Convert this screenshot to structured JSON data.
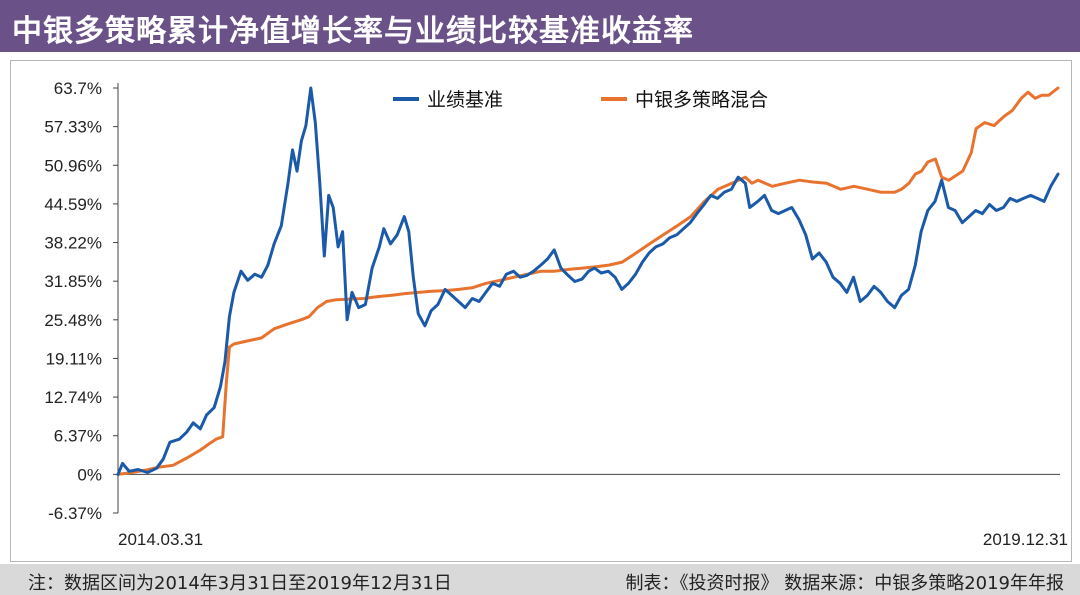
{
  "header": {
    "title": "中银多策略累计净值增长率与业绩比较基准收益率"
  },
  "footer": {
    "note": "注：数据区间为2014年3月31日至2019年12月31日",
    "source": "制表：《投资时报》 数据来源：中银多策略2019年年报"
  },
  "colors": {
    "title_bg": "#6a5288",
    "benchmark": "#1a5aa8",
    "fund": "#e8732e",
    "footer_bg": "#d9d9d9"
  },
  "chart_data": {
    "type": "line",
    "title": "中银多策略累计净值增长率与业绩比较基准收益率",
    "x_start_label": "2014.03.31",
    "x_end_label": "2019.12.31",
    "x_range": [
      "2014-03-31",
      "2019-12-31"
    ],
    "ylim": [
      -6.37,
      63.7
    ],
    "y_ticks": [
      "-6.37%",
      "0%",
      "6.37%",
      "12.74%",
      "19.11%",
      "25.48%",
      "31.85%",
      "38.22%",
      "44.59%",
      "50.96%",
      "57.33%",
      "63.7%"
    ],
    "y_tick_values": [
      -6.37,
      0,
      6.37,
      12.74,
      19.11,
      25.48,
      31.85,
      38.22,
      44.59,
      50.96,
      57.33,
      63.7
    ],
    "grid": false,
    "legend_position": "top",
    "series": [
      {
        "name": "业绩基准",
        "color": "#1a5aa8",
        "points": [
          [
            "2014-03-31",
            0.0
          ],
          [
            "2014-04-10",
            1.8
          ],
          [
            "2014-04-25",
            0.5
          ],
          [
            "2014-05-15",
            0.8
          ],
          [
            "2014-06-05",
            0.3
          ],
          [
            "2014-06-25",
            1.0
          ],
          [
            "2014-07-10",
            2.5
          ],
          [
            "2014-07-25",
            5.3
          ],
          [
            "2014-08-15",
            5.8
          ],
          [
            "2014-09-01",
            7.0
          ],
          [
            "2014-09-15",
            8.5
          ],
          [
            "2014-10-01",
            7.5
          ],
          [
            "2014-10-15",
            9.8
          ],
          [
            "2014-11-01",
            11.0
          ],
          [
            "2014-11-15",
            14.5
          ],
          [
            "2014-11-25",
            18.5
          ],
          [
            "2014-12-05",
            26.0
          ],
          [
            "2014-12-15",
            30.0
          ],
          [
            "2014-12-31",
            33.5
          ],
          [
            "2015-01-15",
            32.0
          ],
          [
            "2015-01-31",
            33.0
          ],
          [
            "2015-02-15",
            32.5
          ],
          [
            "2015-03-01",
            34.5
          ],
          [
            "2015-03-15",
            38.0
          ],
          [
            "2015-03-31",
            41.0
          ],
          [
            "2015-04-15",
            48.0
          ],
          [
            "2015-04-25",
            53.5
          ],
          [
            "2015-05-05",
            50.0
          ],
          [
            "2015-05-15",
            55.0
          ],
          [
            "2015-05-25",
            57.5
          ],
          [
            "2015-06-05",
            63.7
          ],
          [
            "2015-06-15",
            58.0
          ],
          [
            "2015-06-25",
            48.0
          ],
          [
            "2015-07-05",
            36.0
          ],
          [
            "2015-07-15",
            46.0
          ],
          [
            "2015-07-25",
            44.0
          ],
          [
            "2015-08-05",
            37.5
          ],
          [
            "2015-08-15",
            40.0
          ],
          [
            "2015-08-25",
            25.5
          ],
          [
            "2015-09-05",
            30.0
          ],
          [
            "2015-09-20",
            27.5
          ],
          [
            "2015-10-05",
            28.0
          ],
          [
            "2015-10-20",
            34.0
          ],
          [
            "2015-11-05",
            37.5
          ],
          [
            "2015-11-15",
            40.5
          ],
          [
            "2015-11-30",
            38.0
          ],
          [
            "2015-12-15",
            39.5
          ],
          [
            "2015-12-31",
            42.5
          ],
          [
            "2016-01-10",
            40.0
          ],
          [
            "2016-01-20",
            32.5
          ],
          [
            "2016-01-31",
            26.5
          ],
          [
            "2016-02-15",
            24.5
          ],
          [
            "2016-02-29",
            27.0
          ],
          [
            "2016-03-15",
            28.0
          ],
          [
            "2016-03-31",
            30.5
          ],
          [
            "2016-04-15",
            29.5
          ],
          [
            "2016-04-30",
            28.5
          ],
          [
            "2016-05-15",
            27.5
          ],
          [
            "2016-05-31",
            29.0
          ],
          [
            "2016-06-15",
            28.5
          ],
          [
            "2016-06-30",
            30.0
          ],
          [
            "2016-07-15",
            31.5
          ],
          [
            "2016-07-31",
            31.0
          ],
          [
            "2016-08-15",
            33.0
          ],
          [
            "2016-08-31",
            33.5
          ],
          [
            "2016-09-15",
            32.5
          ],
          [
            "2016-09-30",
            32.8
          ],
          [
            "2016-10-15",
            33.5
          ],
          [
            "2016-10-31",
            34.5
          ],
          [
            "2016-11-15",
            35.5
          ],
          [
            "2016-11-30",
            37.0
          ],
          [
            "2016-12-15",
            34.0
          ],
          [
            "2016-12-31",
            32.8
          ],
          [
            "2017-01-15",
            31.8
          ],
          [
            "2017-01-31",
            32.2
          ],
          [
            "2017-02-15",
            33.5
          ],
          [
            "2017-02-28",
            34.0
          ],
          [
            "2017-03-15",
            33.2
          ],
          [
            "2017-03-31",
            33.5
          ],
          [
            "2017-04-15",
            32.5
          ],
          [
            "2017-04-30",
            30.5
          ],
          [
            "2017-05-15",
            31.5
          ],
          [
            "2017-05-31",
            33.0
          ],
          [
            "2017-06-15",
            35.0
          ],
          [
            "2017-06-30",
            36.5
          ],
          [
            "2017-07-15",
            37.5
          ],
          [
            "2017-07-31",
            38.0
          ],
          [
            "2017-08-15",
            39.0
          ],
          [
            "2017-08-31",
            39.5
          ],
          [
            "2017-09-15",
            40.5
          ],
          [
            "2017-09-30",
            41.5
          ],
          [
            "2017-10-15",
            43.0
          ],
          [
            "2017-10-31",
            44.5
          ],
          [
            "2017-11-15",
            46.0
          ],
          [
            "2017-11-30",
            45.5
          ],
          [
            "2017-12-15",
            46.5
          ],
          [
            "2017-12-31",
            47.0
          ],
          [
            "2018-01-15",
            49.0
          ],
          [
            "2018-01-31",
            48.0
          ],
          [
            "2018-02-10",
            44.0
          ],
          [
            "2018-02-28",
            45.0
          ],
          [
            "2018-03-15",
            46.0
          ],
          [
            "2018-03-31",
            43.5
          ],
          [
            "2018-04-15",
            43.0
          ],
          [
            "2018-04-30",
            43.5
          ],
          [
            "2018-05-15",
            44.0
          ],
          [
            "2018-05-31",
            42.0
          ],
          [
            "2018-06-15",
            39.5
          ],
          [
            "2018-06-30",
            35.5
          ],
          [
            "2018-07-15",
            36.5
          ],
          [
            "2018-07-31",
            35.0
          ],
          [
            "2018-08-15",
            32.5
          ],
          [
            "2018-08-31",
            31.5
          ],
          [
            "2018-09-15",
            30.0
          ],
          [
            "2018-09-30",
            32.5
          ],
          [
            "2018-10-15",
            28.5
          ],
          [
            "2018-10-31",
            29.5
          ],
          [
            "2018-11-15",
            31.0
          ],
          [
            "2018-11-30",
            30.0
          ],
          [
            "2018-12-15",
            28.5
          ],
          [
            "2018-12-31",
            27.5
          ],
          [
            "2019-01-15",
            29.5
          ],
          [
            "2019-01-31",
            30.5
          ],
          [
            "2019-02-15",
            34.5
          ],
          [
            "2019-02-28",
            40.0
          ],
          [
            "2019-03-15",
            43.5
          ],
          [
            "2019-03-31",
            45.0
          ],
          [
            "2019-04-15",
            48.5
          ],
          [
            "2019-04-30",
            44.0
          ],
          [
            "2019-05-15",
            43.5
          ],
          [
            "2019-05-31",
            41.5
          ],
          [
            "2019-06-15",
            42.5
          ],
          [
            "2019-06-30",
            43.5
          ],
          [
            "2019-07-15",
            43.0
          ],
          [
            "2019-07-31",
            44.5
          ],
          [
            "2019-08-15",
            43.5
          ],
          [
            "2019-08-31",
            44.0
          ],
          [
            "2019-09-15",
            45.5
          ],
          [
            "2019-09-30",
            45.0
          ],
          [
            "2019-10-15",
            45.5
          ],
          [
            "2019-10-31",
            46.0
          ],
          [
            "2019-11-15",
            45.5
          ],
          [
            "2019-11-30",
            45.0
          ],
          [
            "2019-12-15",
            47.5
          ],
          [
            "2019-12-31",
            49.5
          ]
        ]
      },
      {
        "name": "中银多策略混合",
        "color": "#e8732e",
        "points": [
          [
            "2014-03-31",
            0.0
          ],
          [
            "2014-05-01",
            0.3
          ],
          [
            "2014-06-01",
            0.7
          ],
          [
            "2014-07-01",
            1.2
          ],
          [
            "2014-08-01",
            1.5
          ],
          [
            "2014-09-01",
            2.7
          ],
          [
            "2014-10-01",
            4.0
          ],
          [
            "2014-10-20",
            5.0
          ],
          [
            "2014-11-05",
            5.8
          ],
          [
            "2014-11-20",
            6.2
          ],
          [
            "2014-11-28",
            15.0
          ],
          [
            "2014-12-05",
            21.0
          ],
          [
            "2014-12-15",
            21.5
          ],
          [
            "2015-01-15",
            22.0
          ],
          [
            "2015-02-15",
            22.5
          ],
          [
            "2015-03-15",
            24.0
          ],
          [
            "2015-04-15",
            24.8
          ],
          [
            "2015-05-15",
            25.5
          ],
          [
            "2015-06-01",
            26.0
          ],
          [
            "2015-06-20",
            27.5
          ],
          [
            "2015-07-10",
            28.5
          ],
          [
            "2015-08-01",
            28.8
          ],
          [
            "2015-09-01",
            28.9
          ],
          [
            "2015-10-01",
            29.0
          ],
          [
            "2015-11-01",
            29.3
          ],
          [
            "2015-12-01",
            29.5
          ],
          [
            "2016-01-01",
            29.8
          ],
          [
            "2016-02-01",
            30.0
          ],
          [
            "2016-03-01",
            30.2
          ],
          [
            "2016-04-01",
            30.3
          ],
          [
            "2016-05-01",
            30.5
          ],
          [
            "2016-06-01",
            30.8
          ],
          [
            "2016-07-01",
            31.5
          ],
          [
            "2016-08-01",
            32.0
          ],
          [
            "2016-09-01",
            32.5
          ],
          [
            "2016-10-01",
            33.0
          ],
          [
            "2016-11-01",
            33.5
          ],
          [
            "2016-12-01",
            33.5
          ],
          [
            "2017-01-01",
            33.8
          ],
          [
            "2017-02-01",
            34.0
          ],
          [
            "2017-03-01",
            34.2
          ],
          [
            "2017-04-01",
            34.5
          ],
          [
            "2017-05-01",
            35.0
          ],
          [
            "2017-06-01",
            36.5
          ],
          [
            "2017-07-01",
            38.0
          ],
          [
            "2017-08-01",
            39.5
          ],
          [
            "2017-09-01",
            41.0
          ],
          [
            "2017-10-01",
            42.5
          ],
          [
            "2017-11-01",
            45.0
          ],
          [
            "2017-12-01",
            47.0
          ],
          [
            "2018-01-01",
            48.0
          ],
          [
            "2018-01-31",
            49.0
          ],
          [
            "2018-02-15",
            48.0
          ],
          [
            "2018-03-01",
            48.5
          ],
          [
            "2018-04-01",
            47.5
          ],
          [
            "2018-05-01",
            48.0
          ],
          [
            "2018-06-01",
            48.5
          ],
          [
            "2018-07-01",
            48.2
          ],
          [
            "2018-08-01",
            48.0
          ],
          [
            "2018-09-01",
            47.0
          ],
          [
            "2018-10-01",
            47.5
          ],
          [
            "2018-11-01",
            47.0
          ],
          [
            "2018-12-01",
            46.5
          ],
          [
            "2018-12-31",
            46.5
          ],
          [
            "2019-01-15",
            47.0
          ],
          [
            "2019-02-01",
            48.0
          ],
          [
            "2019-02-15",
            49.5
          ],
          [
            "2019-03-01",
            50.0
          ],
          [
            "2019-03-15",
            51.5
          ],
          [
            "2019-04-01",
            52.0
          ],
          [
            "2019-04-15",
            49.0
          ],
          [
            "2019-05-01",
            48.5
          ],
          [
            "2019-06-01",
            50.0
          ],
          [
            "2019-06-20",
            53.0
          ],
          [
            "2019-07-01",
            57.0
          ],
          [
            "2019-07-20",
            58.0
          ],
          [
            "2019-08-10",
            57.5
          ],
          [
            "2019-09-01",
            59.0
          ],
          [
            "2019-09-20",
            60.0
          ],
          [
            "2019-10-10",
            62.0
          ],
          [
            "2019-10-25",
            63.0
          ],
          [
            "2019-11-10",
            62.0
          ],
          [
            "2019-11-25",
            62.5
          ],
          [
            "2019-12-10",
            62.5
          ],
          [
            "2019-12-31",
            63.7
          ]
        ]
      }
    ]
  }
}
